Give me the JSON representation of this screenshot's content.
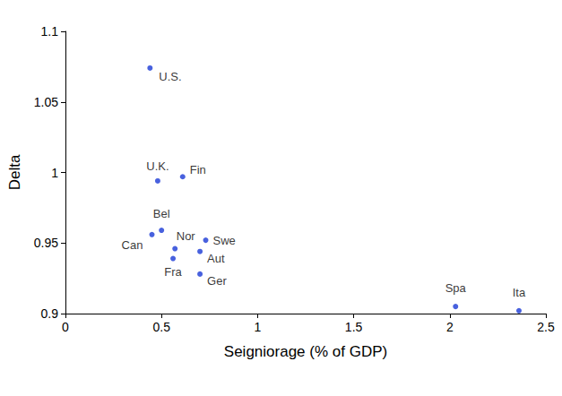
{
  "chart_data": {
    "type": "scatter",
    "x_label": "Seigniorage (% of GDP)",
    "y_label": "Delta",
    "labels": [
      "U.S.",
      "U.K.",
      "Fin",
      "Bel",
      "Nor",
      "Can",
      "Fra",
      "Aut",
      "Swe",
      "Ger",
      "Spa",
      "Ita"
    ],
    "x": [
      0.44,
      0.48,
      0.61,
      0.5,
      0.57,
      0.45,
      0.56,
      0.7,
      0.73,
      0.7,
      2.03,
      2.36
    ],
    "values": [
      1.074,
      0.994,
      0.997,
      0.959,
      0.946,
      0.956,
      0.939,
      0.944,
      0.952,
      0.928,
      0.905,
      0.902
    ],
    "color": "#1a3ad6",
    "marker": "circle",
    "xlim": [
      0,
      2.5
    ],
    "xticks": [
      0,
      0.5,
      1,
      1.5,
      2,
      2.5
    ],
    "ylim": [
      0.9,
      1.1
    ],
    "yticks": [
      0.9,
      0.95,
      1,
      1.05,
      1.1
    ],
    "grid": false
  }
}
